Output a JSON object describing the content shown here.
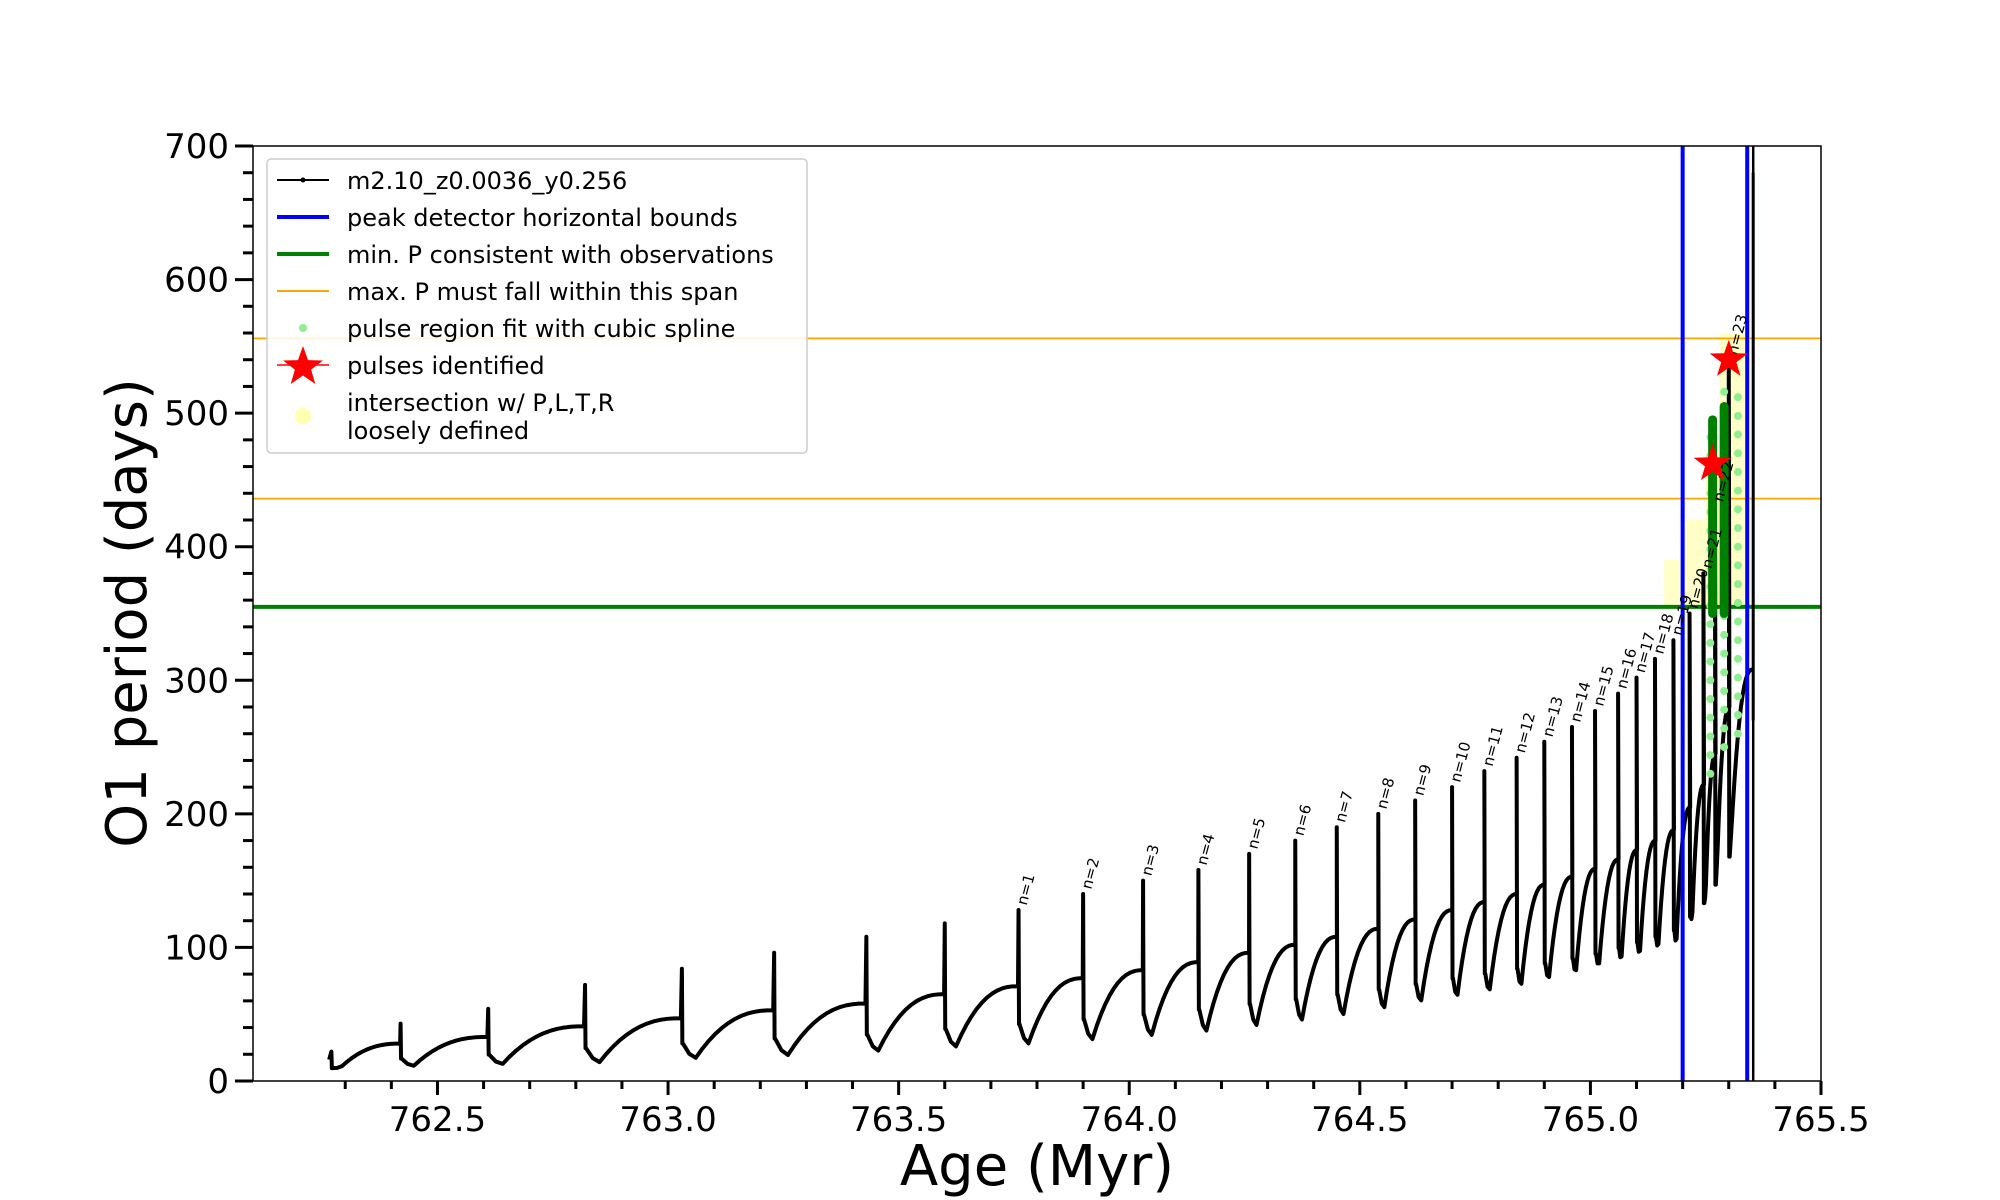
{
  "chart_data": {
    "type": "line",
    "title": "",
    "xlabel": "Age (Myr)",
    "ylabel": "O1 period (days)",
    "xlim": [
      762.1,
      765.5
    ],
    "ylim": [
      0,
      700
    ],
    "xticks": [
      762.5,
      763.0,
      763.5,
      764.0,
      764.5,
      765.0,
      765.5
    ],
    "xtick_labels": [
      "762.5",
      "763.0",
      "763.5",
      "764.0",
      "764.5",
      "765.0",
      "765.5"
    ],
    "yticks": [
      0,
      100,
      200,
      300,
      400,
      500,
      600,
      700
    ],
    "ytick_labels": [
      "0",
      "100",
      "200",
      "300",
      "400",
      "500",
      "600",
      "700"
    ],
    "grid": false,
    "legend_position": "top-left",
    "legend": [
      {
        "label": "m2.10_z0.0036_y0.256",
        "kind": "line-marker",
        "color": "#000000"
      },
      {
        "label": "peak detector horizontal bounds",
        "kind": "line",
        "color": "#0000ff"
      },
      {
        "label": "min. P consistent with observations",
        "kind": "line",
        "color": "#008000"
      },
      {
        "label": "max. P must fall within this span",
        "kind": "thin-line",
        "color": "#ffa500"
      },
      {
        "label": "pulse region fit with cubic spline",
        "kind": "dot",
        "color": "#90ee90"
      },
      {
        "label": "pulses identified",
        "kind": "star",
        "color": "#ff0000"
      },
      {
        "label": "intersection w/ P,L,T,R",
        "label2": "loosely defined",
        "kind": "big-dot",
        "color": "#ffffb0"
      }
    ],
    "hlines": [
      {
        "name": "min. P consistent with observations",
        "y": 355,
        "color": "#008000"
      },
      {
        "name": "max. P span upper",
        "y": 556,
        "color": "#ffa500"
      },
      {
        "name": "max. P span lower",
        "y": 436,
        "color": "#ffa500"
      }
    ],
    "vlines": [
      {
        "name": "peak detector bound left",
        "x": 765.2,
        "color": "#0000ff"
      },
      {
        "name": "peak detector bound right",
        "x": 765.34,
        "color": "#0000ff"
      },
      {
        "name": "track end",
        "x": 765.353,
        "color": "#000000"
      }
    ],
    "pulses": [
      {
        "age": 762.27,
        "base": 10,
        "pre": 16,
        "peak": 22,
        "label": ""
      },
      {
        "age": 762.42,
        "base": 10,
        "pre": 28,
        "peak": 43,
        "label": ""
      },
      {
        "age": 762.61,
        "base": 11,
        "pre": 33,
        "peak": 54,
        "label": ""
      },
      {
        "age": 762.82,
        "base": 12,
        "pre": 41,
        "peak": 72,
        "label": ""
      },
      {
        "age": 763.03,
        "base": 15,
        "pre": 47,
        "peak": 84,
        "label": ""
      },
      {
        "age": 763.23,
        "base": 17,
        "pre": 53,
        "peak": 96,
        "label": ""
      },
      {
        "age": 763.43,
        "base": 20,
        "pre": 58,
        "peak": 108,
        "label": ""
      },
      {
        "age": 763.6,
        "base": 23,
        "pre": 65,
        "peak": 118,
        "label": ""
      },
      {
        "age": 763.76,
        "base": 25,
        "pre": 71,
        "peak": 128,
        "label": "n=1"
      },
      {
        "age": 763.9,
        "base": 28,
        "pre": 77,
        "peak": 140,
        "label": "n=2"
      },
      {
        "age": 764.03,
        "base": 31,
        "pre": 83,
        "peak": 150,
        "label": "n=3"
      },
      {
        "age": 764.15,
        "base": 34,
        "pre": 89,
        "peak": 158,
        "label": "n=4"
      },
      {
        "age": 764.26,
        "base": 38,
        "pre": 96,
        "peak": 170,
        "label": "n=5"
      },
      {
        "age": 764.36,
        "base": 42,
        "pre": 102,
        "peak": 180,
        "label": "n=6"
      },
      {
        "age": 764.45,
        "base": 46,
        "pre": 108,
        "peak": 190,
        "label": "n=7"
      },
      {
        "age": 764.54,
        "base": 51,
        "pre": 114,
        "peak": 200,
        "label": "n=8"
      },
      {
        "age": 764.62,
        "base": 56,
        "pre": 121,
        "peak": 210,
        "label": "n=9"
      },
      {
        "age": 764.7,
        "base": 60,
        "pre": 128,
        "peak": 220,
        "label": "n=10"
      },
      {
        "age": 764.77,
        "base": 64,
        "pre": 134,
        "peak": 232,
        "label": "n=11"
      },
      {
        "age": 764.84,
        "base": 68,
        "pre": 140,
        "peak": 242,
        "label": "n=12"
      },
      {
        "age": 764.9,
        "base": 73,
        "pre": 147,
        "peak": 254,
        "label": "n=13"
      },
      {
        "age": 764.96,
        "base": 78,
        "pre": 153,
        "peak": 265,
        "label": "n=14"
      },
      {
        "age": 765.01,
        "base": 83,
        "pre": 159,
        "peak": 277,
        "label": "n=15"
      },
      {
        "age": 765.06,
        "base": 88,
        "pre": 166,
        "peak": 290,
        "label": "n=16"
      },
      {
        "age": 765.1,
        "base": 92,
        "pre": 173,
        "peak": 302,
        "label": "n=17"
      },
      {
        "age": 765.14,
        "base": 97,
        "pre": 180,
        "peak": 316,
        "label": "n=18"
      },
      {
        "age": 765.18,
        "base": 100,
        "pre": 188,
        "peak": 330,
        "label": "n=19"
      },
      {
        "age": 765.215,
        "base": 120,
        "pre": 205,
        "peak": 350,
        "label": "n=20"
      },
      {
        "age": 765.245,
        "base": 140,
        "pre": 222,
        "peak": 380,
        "label": "n=21"
      },
      {
        "age": 765.27,
        "base": 170,
        "pre": 245,
        "peak": 430,
        "label": "n=22"
      },
      {
        "age": 765.3,
        "base": 200,
        "pre": 280,
        "peak": 540,
        "label": "n=23"
      }
    ],
    "pulses_identified": [
      {
        "age": 765.265,
        "period": 462
      },
      {
        "age": 765.3,
        "period": 540
      }
    ],
    "intersection_regions": [
      {
        "age_start": 765.16,
        "age_end": 765.2,
        "period_min": 355,
        "period_max": 390
      },
      {
        "age_start": 765.2,
        "age_end": 765.25,
        "period_min": 355,
        "period_max": 420
      },
      {
        "age_start": 765.25,
        "age_end": 765.28,
        "period_min": 355,
        "period_max": 470
      },
      {
        "age_start": 765.28,
        "age_end": 765.34,
        "period_min": 355,
        "period_max": 560
      }
    ],
    "spline_fit_regions": [
      {
        "age": 765.26,
        "period_min": 230,
        "period_max": 495
      },
      {
        "age": 765.29,
        "period_min": 250,
        "period_max": 520
      },
      {
        "age": 765.32,
        "period_min": 260,
        "period_max": 520
      }
    ],
    "green_segments": [
      {
        "age": 765.265,
        "period_min": 350,
        "period_max": 495
      },
      {
        "age": 765.29,
        "period_min": 350,
        "period_max": 505
      }
    ]
  }
}
